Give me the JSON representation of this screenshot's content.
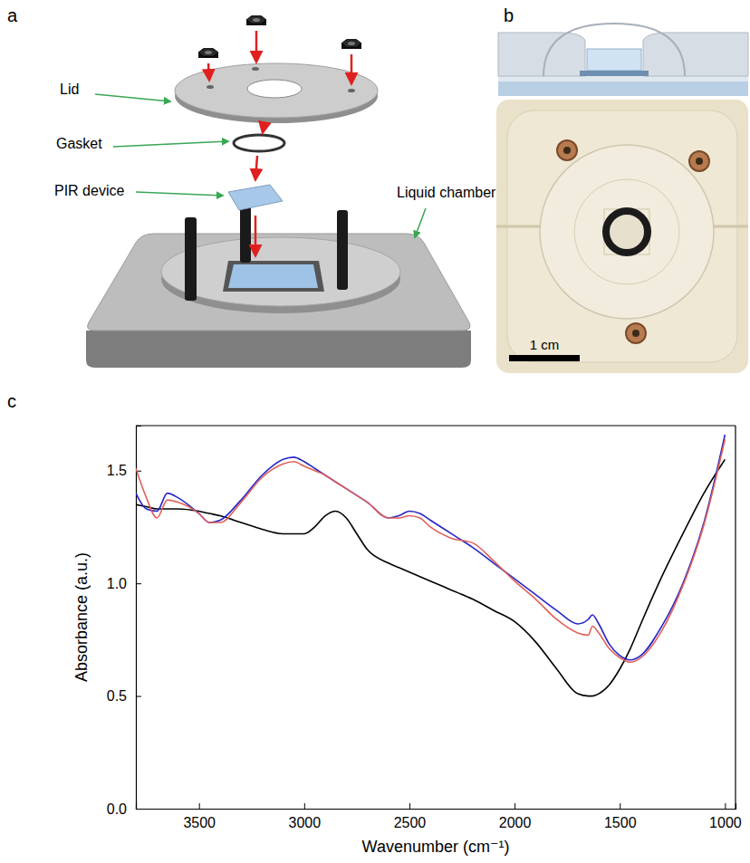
{
  "panels": [
    {
      "letter": "a",
      "labels": [
        "Lid",
        "Gasket",
        "PIR device",
        "Liquid chamber"
      ]
    },
    {
      "letter": "b",
      "scale_bar": "1 cm"
    },
    {
      "letter": "c"
    }
  ],
  "chart_data": {
    "type": "line",
    "x_label": "Wavenumber (cm⁻¹)",
    "y_label": "Absorbance (a.u.)",
    "x": [
      3800,
      3750,
      3700,
      3650,
      3600,
      3500,
      3450,
      3400,
      3300,
      3200,
      3100,
      3050,
      3000,
      2950,
      2900,
      2850,
      2800,
      2750,
      2700,
      2600,
      2550,
      2500,
      2450,
      2400,
      2300,
      2200,
      2100,
      2000,
      1900,
      1800,
      1700,
      1650,
      1630,
      1600,
      1550,
      1500,
      1450,
      1400,
      1300,
      1200,
      1100,
      1000
    ],
    "series": [
      {
        "color": "#000000",
        "values": [
          1.35,
          1.34,
          1.33,
          1.33,
          1.33,
          1.32,
          1.31,
          1.3,
          1.27,
          1.24,
          1.22,
          1.22,
          1.22,
          1.25,
          1.3,
          1.32,
          1.29,
          1.22,
          1.15,
          1.09,
          1.07,
          1.05,
          1.03,
          1.01,
          0.97,
          0.93,
          0.88,
          0.83,
          0.74,
          0.62,
          0.51,
          0.5,
          0.5,
          0.51,
          0.55,
          0.62,
          0.71,
          0.82,
          1.03,
          1.22,
          1.4,
          1.55
        ]
      },
      {
        "color": "#2424c8",
        "values": [
          1.4,
          1.33,
          1.32,
          1.4,
          1.38,
          1.31,
          1.27,
          1.28,
          1.37,
          1.48,
          1.55,
          1.56,
          1.54,
          1.51,
          1.48,
          1.45,
          1.42,
          1.39,
          1.36,
          1.29,
          1.3,
          1.32,
          1.31,
          1.28,
          1.22,
          1.16,
          1.09,
          1.02,
          0.95,
          0.88,
          0.82,
          0.84,
          0.86,
          0.82,
          0.73,
          0.68,
          0.66,
          0.68,
          0.81,
          1.0,
          1.27,
          1.66
        ]
      },
      {
        "color": "#e0605a",
        "values": [
          1.51,
          1.38,
          1.29,
          1.37,
          1.36,
          1.31,
          1.27,
          1.27,
          1.36,
          1.47,
          1.53,
          1.54,
          1.52,
          1.5,
          1.48,
          1.45,
          1.42,
          1.39,
          1.36,
          1.29,
          1.29,
          1.3,
          1.29,
          1.25,
          1.2,
          1.18,
          1.1,
          1.01,
          0.93,
          0.84,
          0.78,
          0.77,
          0.81,
          0.78,
          0.71,
          0.67,
          0.65,
          0.67,
          0.79,
          0.99,
          1.26,
          1.64
        ]
      }
    ],
    "xlim": [
      3800,
      950
    ],
    "ylim": [
      0,
      1.7
    ],
    "xticks": [
      3500,
      3000,
      2500,
      2000,
      1500,
      1000
    ],
    "yticks": [
      {
        "value": 0,
        "label": "0.0"
      },
      {
        "value": 0.5,
        "label": "0.5"
      },
      {
        "value": 1,
        "label": "1.0"
      },
      {
        "value": 1.5,
        "label": "1.5"
      }
    ],
    "grid": false
  }
}
